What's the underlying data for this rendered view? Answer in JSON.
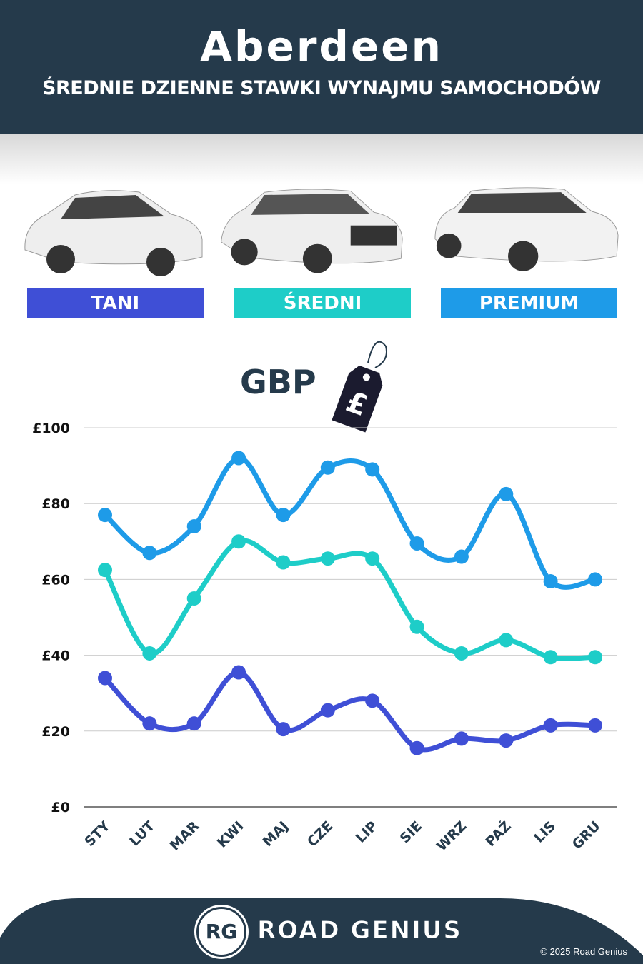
{
  "header": {
    "title": "Aberdeen",
    "subtitle": "ŚREDNIE DZIENNE STAWKI WYNAJMU SAMOCHODÓW"
  },
  "categories": [
    {
      "label": "TANI",
      "color": "#3f4fd6"
    },
    {
      "label": "ŚREDNI",
      "color": "#1ecdc8"
    },
    {
      "label": "PREMIUM",
      "color": "#1e9be8"
    }
  ],
  "currency": {
    "label": "GBP",
    "symbol": "£"
  },
  "footer": {
    "brand": "ROAD GENIUS",
    "logo": "RG",
    "copyright": "© 2025 Road Genius"
  },
  "chart_data": {
    "type": "line",
    "categories": [
      "STY",
      "LUT",
      "MAR",
      "KWI",
      "MAJ",
      "CZE",
      "LIP",
      "SIE",
      "WRZ",
      "PAŹ",
      "LIS",
      "GRU"
    ],
    "ylim": [
      0,
      100
    ],
    "yticks": [
      0,
      20,
      40,
      60,
      80,
      100
    ],
    "ytick_labels": [
      "£0",
      "£20",
      "£40",
      "£60",
      "£80",
      "£100"
    ],
    "grid": true,
    "series": [
      {
        "name": "PREMIUM",
        "color": "#1e9be8",
        "values": [
          77,
          67,
          74,
          92,
          77,
          89.5,
          89,
          69.5,
          66,
          82.5,
          59.5,
          60
        ]
      },
      {
        "name": "ŚREDNI",
        "color": "#1ecdc8",
        "values": [
          62.5,
          40.5,
          55,
          70,
          64.5,
          65.5,
          65.5,
          47.5,
          40.5,
          44,
          39.5,
          39.5
        ]
      },
      {
        "name": "TANI",
        "color": "#3f4fd6",
        "values": [
          34,
          22,
          22,
          35.5,
          20.5,
          25.5,
          28,
          15.5,
          18,
          17.5,
          21.5,
          21.5
        ]
      }
    ]
  }
}
